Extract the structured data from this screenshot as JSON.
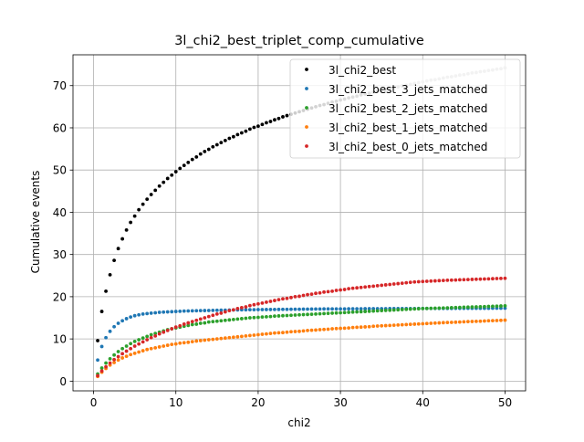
{
  "chart_data": {
    "type": "scatter",
    "title": "3l_chi2_best_triplet_comp_cumulative",
    "xlabel": "chi2",
    "ylabel": "Cumulative events",
    "xlim": [
      -2.5,
      52.5
    ],
    "ylim": [
      -2.3,
      77.3
    ],
    "xticks": [
      0,
      10,
      20,
      30,
      40,
      50
    ],
    "yticks": [
      0,
      10,
      20,
      30,
      40,
      50,
      60,
      70
    ],
    "grid": true,
    "legend_position": "top-right",
    "x": [
      0.5,
      1.0,
      1.5,
      2.0,
      2.5,
      3.0,
      3.5,
      4.0,
      4.5,
      5.0,
      5.5,
      6.0,
      6.5,
      7.0,
      7.5,
      8.0,
      8.5,
      9.0,
      9.5,
      10.0,
      10.5,
      11.0,
      11.5,
      12.0,
      12.5,
      13.0,
      13.5,
      14.0,
      14.5,
      15.0,
      15.5,
      16.0,
      16.5,
      17.0,
      17.5,
      18.0,
      18.5,
      19.0,
      19.5,
      20.0,
      20.5,
      21.0,
      21.5,
      22.0,
      22.5,
      23.0,
      23.5,
      24.0,
      24.5,
      25.0,
      25.5,
      26.0,
      26.5,
      27.0,
      27.5,
      28.0,
      28.5,
      29.0,
      29.5,
      30.0,
      30.5,
      31.0,
      31.5,
      32.0,
      32.5,
      33.0,
      33.5,
      34.0,
      34.5,
      35.0,
      35.5,
      36.0,
      36.5,
      37.0,
      37.5,
      38.0,
      38.5,
      39.0,
      39.5,
      40.0,
      40.5,
      41.0,
      41.5,
      42.0,
      42.5,
      43.0,
      43.5,
      44.0,
      44.5,
      45.0,
      45.5,
      46.0,
      46.5,
      47.0,
      47.5,
      48.0,
      48.5,
      49.0,
      49.5,
      50.0
    ],
    "series": [
      {
        "name": "3l_chi2_best",
        "color": "#000000",
        "fade_from_x": 24,
        "fade_color": "#bdbdbd",
        "values": [
          9.6,
          16.5,
          21.3,
          25.2,
          28.6,
          31.4,
          33.7,
          35.8,
          37.6,
          39.1,
          40.6,
          41.9,
          43.1,
          44.2,
          45.2,
          46.2,
          47.1,
          48.0,
          48.8,
          49.6,
          50.4,
          51.1,
          51.8,
          52.5,
          53.1,
          53.8,
          54.4,
          54.9,
          55.5,
          56.0,
          56.5,
          57.0,
          57.5,
          57.9,
          58.4,
          58.8,
          59.2,
          59.7,
          60.1,
          60.4,
          60.8,
          61.2,
          61.5,
          61.9,
          62.2,
          62.6,
          62.9,
          63.2,
          63.5,
          63.8,
          64.1,
          64.4,
          64.7,
          65.0,
          65.3,
          65.5,
          65.8,
          66.1,
          66.3,
          66.6,
          66.8,
          67.1,
          67.3,
          67.5,
          67.8,
          68.0,
          68.2,
          68.5,
          68.7,
          68.9,
          69.1,
          69.3,
          69.5,
          69.7,
          69.9,
          70.1,
          70.3,
          70.5,
          70.7,
          70.9,
          71.1,
          71.3,
          71.4,
          71.6,
          71.8,
          72.0,
          72.1,
          72.3,
          72.5,
          72.6,
          72.8,
          73.0,
          73.1,
          73.3,
          73.4,
          73.6,
          73.7,
          73.9,
          74.0,
          74.2
        ]
      },
      {
        "name": "3l_chi2_best_3_jets_matched",
        "color": "#1f77b4",
        "values": [
          5.0,
          8.2,
          10.3,
          11.8,
          12.9,
          13.7,
          14.3,
          14.8,
          15.2,
          15.5,
          15.7,
          15.9,
          16.0,
          16.1,
          16.2,
          16.3,
          16.35,
          16.4,
          16.45,
          16.5,
          16.55,
          16.6,
          16.62,
          16.65,
          16.68,
          16.7,
          16.72,
          16.74,
          16.76,
          16.78,
          16.8,
          16.82,
          16.84,
          16.86,
          16.88,
          16.9,
          16.91,
          16.92,
          16.93,
          16.94,
          16.95,
          16.96,
          16.97,
          16.98,
          16.99,
          17.0,
          17.01,
          17.02,
          17.03,
          17.04,
          17.05,
          17.06,
          17.07,
          17.08,
          17.09,
          17.1,
          17.1,
          17.11,
          17.11,
          17.12,
          17.12,
          17.13,
          17.13,
          17.14,
          17.14,
          17.15,
          17.15,
          17.16,
          17.16,
          17.17,
          17.17,
          17.18,
          17.18,
          17.19,
          17.19,
          17.2,
          17.2,
          17.2,
          17.21,
          17.21,
          17.21,
          17.22,
          17.22,
          17.22,
          17.23,
          17.23,
          17.23,
          17.24,
          17.24,
          17.24,
          17.25,
          17.25,
          17.25,
          17.26,
          17.26,
          17.26,
          17.27,
          17.27,
          17.27,
          17.28
        ]
      },
      {
        "name": "3l_chi2_best_2_jets_matched",
        "color": "#2ca02c",
        "values": [
          1.7,
          3.1,
          4.3,
          5.3,
          6.2,
          7.0,
          7.7,
          8.3,
          8.9,
          9.4,
          9.8,
          10.2,
          10.6,
          11.0,
          11.3,
          11.6,
          11.9,
          12.2,
          12.4,
          12.6,
          12.8,
          13.0,
          13.2,
          13.4,
          13.5,
          13.7,
          13.8,
          14.0,
          14.1,
          14.2,
          14.3,
          14.4,
          14.5,
          14.6,
          14.7,
          14.8,
          14.9,
          15.0,
          15.05,
          15.1,
          15.2,
          15.25,
          15.3,
          15.4,
          15.45,
          15.5,
          15.55,
          15.6,
          15.65,
          15.7,
          15.75,
          15.8,
          15.85,
          15.9,
          15.95,
          16.0,
          16.05,
          16.1,
          16.15,
          16.2,
          16.25,
          16.3,
          16.35,
          16.4,
          16.45,
          16.5,
          16.55,
          16.6,
          16.65,
          16.7,
          16.75,
          16.8,
          16.85,
          16.9,
          16.95,
          17.0,
          17.05,
          17.1,
          17.15,
          17.2,
          17.22,
          17.25,
          17.28,
          17.3,
          17.33,
          17.36,
          17.4,
          17.43,
          17.46,
          17.5,
          17.53,
          17.56,
          17.6,
          17.63,
          17.66,
          17.7,
          17.73,
          17.76,
          17.8,
          17.85
        ]
      },
      {
        "name": "3l_chi2_best_1_jets_matched",
        "color": "#ff7f0e",
        "values": [
          1.1,
          2.1,
          3.0,
          3.8,
          4.4,
          5.0,
          5.5,
          5.9,
          6.3,
          6.6,
          6.9,
          7.2,
          7.5,
          7.7,
          7.9,
          8.1,
          8.3,
          8.5,
          8.7,
          8.8,
          9.0,
          9.1,
          9.2,
          9.35,
          9.5,
          9.6,
          9.7,
          9.8,
          9.9,
          10.0,
          10.1,
          10.2,
          10.3,
          10.4,
          10.5,
          10.6,
          10.7,
          10.8,
          10.9,
          11.0,
          11.1,
          11.2,
          11.3,
          11.4,
          11.45,
          11.5,
          11.6,
          11.7,
          11.75,
          11.8,
          11.9,
          12.0,
          12.05,
          12.1,
          12.2,
          12.25,
          12.3,
          12.4,
          12.45,
          12.5,
          12.55,
          12.6,
          12.7,
          12.75,
          12.8,
          12.85,
          12.9,
          13.0,
          13.05,
          13.1,
          13.15,
          13.2,
          13.25,
          13.3,
          13.35,
          13.4,
          13.45,
          13.5,
          13.55,
          13.6,
          13.65,
          13.7,
          13.75,
          13.8,
          13.85,
          13.9,
          13.93,
          13.96,
          14.0,
          14.05,
          14.1,
          14.13,
          14.16,
          14.2,
          14.25,
          14.3,
          14.33,
          14.36,
          14.4,
          14.45
        ]
      },
      {
        "name": "3l_chi2_best_0_jets_matched",
        "color": "#d62728",
        "values": [
          1.3,
          2.4,
          3.4,
          4.3,
          5.1,
          5.8,
          6.5,
          7.1,
          7.7,
          8.3,
          8.8,
          9.3,
          9.8,
          10.3,
          10.7,
          11.2,
          11.6,
          12.0,
          12.4,
          12.8,
          13.1,
          13.5,
          13.8,
          14.1,
          14.4,
          14.7,
          15.0,
          15.3,
          15.6,
          15.9,
          16.1,
          16.4,
          16.7,
          16.9,
          17.2,
          17.4,
          17.6,
          17.9,
          18.1,
          18.3,
          18.5,
          18.7,
          18.9,
          19.1,
          19.3,
          19.5,
          19.6,
          19.8,
          20.0,
          20.1,
          20.3,
          20.5,
          20.6,
          20.8,
          20.9,
          21.1,
          21.2,
          21.3,
          21.5,
          21.6,
          21.7,
          21.9,
          22.0,
          22.1,
          22.2,
          22.3,
          22.4,
          22.5,
          22.6,
          22.7,
          22.8,
          22.9,
          23.0,
          23.1,
          23.2,
          23.3,
          23.4,
          23.5,
          23.55,
          23.6,
          23.65,
          23.7,
          23.75,
          23.8,
          23.85,
          23.9,
          23.93,
          23.96,
          24.0,
          24.03,
          24.06,
          24.1,
          24.13,
          24.16,
          24.2,
          24.23,
          24.26,
          24.3,
          24.33,
          24.36
        ]
      }
    ]
  }
}
